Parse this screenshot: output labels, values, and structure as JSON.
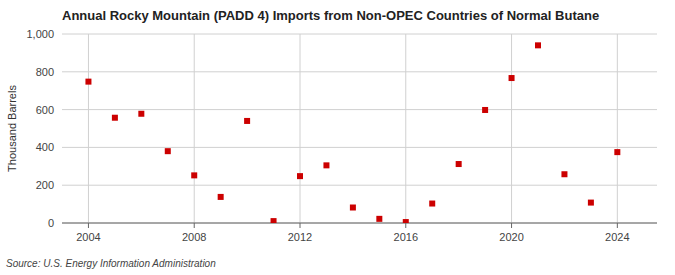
{
  "chart_data": {
    "type": "scatter",
    "title": "Annual Rocky Mountain (PADD 4) Imports from Non-OPEC Countries of Normal Butane",
    "ylabel": "Thousand Barrels",
    "source": "Source: U.S. Energy Information Administration",
    "x": [
      2004,
      2005,
      2006,
      2007,
      2008,
      2009,
      2010,
      2011,
      2012,
      2013,
      2014,
      2015,
      2016,
      2017,
      2018,
      2019,
      2020,
      2021,
      2022,
      2023,
      2024
    ],
    "values": [
      748,
      557,
      578,
      380,
      252,
      138,
      540,
      10,
      248,
      305,
      82,
      22,
      5,
      103,
      312,
      598,
      767,
      940,
      258,
      108,
      375
    ],
    "color": "#cc0000",
    "marker": "square",
    "xlim": [
      2003.0,
      2025.5
    ],
    "xticks": [
      2004,
      2008,
      2012,
      2016,
      2020,
      2024
    ],
    "ylim": [
      0,
      1000
    ],
    "yticks": [
      0,
      200,
      400,
      600,
      800,
      {
        "value": 1000,
        "label": "1,000"
      }
    ],
    "grid": true
  }
}
